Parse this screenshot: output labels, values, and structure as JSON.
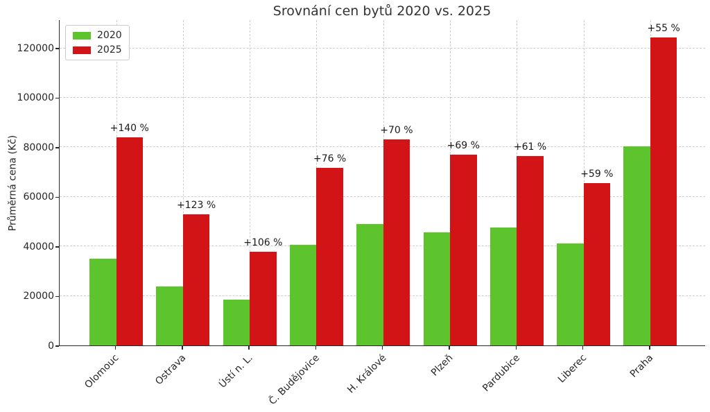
{
  "chart_data": {
    "type": "bar",
    "title": "Srovnání cen bytů 2020 vs. 2025",
    "ylabel": "Průměrná cena (Kč)",
    "categories": [
      "Olomouc",
      "Ostrava",
      "Ústí n. L.",
      "Č. Budějovice",
      "H. Králové",
      "Plzeň",
      "Pardubice",
      "Liberec",
      "Praha"
    ],
    "series": [
      {
        "name": "2020",
        "color": "#5ec42d",
        "values": [
          35000,
          23800,
          18400,
          40700,
          49000,
          45600,
          47600,
          41300,
          80300
        ]
      },
      {
        "name": "2025",
        "color": "#d21417",
        "values": [
          84000,
          53000,
          37900,
          71600,
          83300,
          77000,
          76600,
          65700,
          124500
        ]
      }
    ],
    "annotations": [
      "+140 %",
      "+123 %",
      "+106 %",
      "+76 %",
      "+70 %",
      "+69 %",
      "+61 %",
      "+59 %",
      "+55 %"
    ],
    "yticks": [
      0,
      20000,
      40000,
      60000,
      80000,
      100000,
      120000
    ],
    "ylim": [
      0,
      131400
    ],
    "grid": true,
    "legend_position": "upper left",
    "colors": {
      "grid": "#cccccc",
      "axis": "#262626",
      "text": "#262626",
      "annotation": "#1a1a1a",
      "background": "#ffffff"
    }
  }
}
